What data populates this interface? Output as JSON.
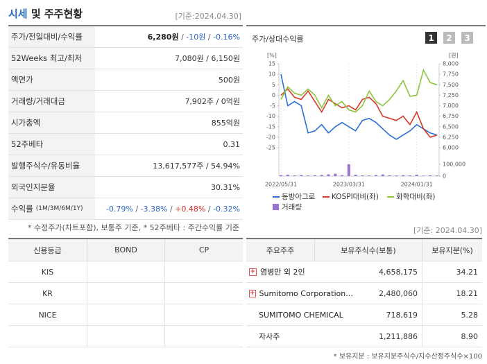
{
  "header": {
    "title_main": "시세",
    "title_rest": " 및 주주현황",
    "as_of": "[기준:2024.04.30]"
  },
  "stock_table": {
    "rows": [
      {
        "label": "주가/전일대비/수익률",
        "parts": [
          {
            "text": "6,280원",
            "color": "#222222",
            "bold": true
          },
          {
            "text": " / ",
            "color": "#555555"
          },
          {
            "text": "-10원",
            "color": "#2a64c8"
          },
          {
            "text": " / ",
            "color": "#555555"
          },
          {
            "text": "-0.16%",
            "color": "#2a64c8"
          }
        ]
      },
      {
        "label": "52Weeks 최고/최저",
        "parts": [
          {
            "text": "7,080원 / 6,150원",
            "color": "#333333"
          }
        ]
      },
      {
        "label": "액면가",
        "parts": [
          {
            "text": "500원",
            "color": "#333333"
          }
        ]
      },
      {
        "label": "거래량/거래대금",
        "parts": [
          {
            "text": "7,902주 / 0억원",
            "color": "#333333"
          }
        ]
      },
      {
        "label": "시가총액",
        "parts": [
          {
            "text": "855억원",
            "color": "#333333"
          }
        ]
      },
      {
        "label": "52주베타",
        "parts": [
          {
            "text": "0.31",
            "color": "#333333"
          }
        ]
      },
      {
        "label": "발행주식수/유동비율",
        "parts": [
          {
            "text": "13,617,577주 / 54.94%",
            "color": "#333333"
          }
        ]
      },
      {
        "label": "외국인지분율",
        "parts": [
          {
            "text": "30.31%",
            "color": "#333333"
          }
        ]
      },
      {
        "label": "수익률",
        "label_sub": "(1M/3M/6M/1Y)",
        "parts": [
          {
            "text": "-0.79%",
            "color": "#2a64c8"
          },
          {
            "text": " / ",
            "color": "#555555"
          },
          {
            "text": "-3.38%",
            "color": "#2a64c8"
          },
          {
            "text": " / ",
            "color": "#555555"
          },
          {
            "text": "+0.48%",
            "color": "#d42a2a"
          },
          {
            "text": " / ",
            "color": "#555555"
          },
          {
            "text": "-0.32%",
            "color": "#2a64c8"
          }
        ]
      }
    ]
  },
  "chart_panel": {
    "title": "주가/상대수익률",
    "buttons": [
      "1",
      "2",
      "3"
    ],
    "active_button": 0
  },
  "chart_data": {
    "type": "line",
    "categories": [
      "2022/05/31",
      null,
      null,
      null,
      null,
      null,
      null,
      null,
      null,
      null,
      "2023/03/31",
      null,
      null,
      null,
      null,
      null,
      null,
      null,
      null,
      null,
      "2024/01/31",
      null,
      null,
      null
    ],
    "y_unit": "[%]",
    "y2_unit": "[원]",
    "ylim": [
      -25,
      15
    ],
    "yticks": [
      15,
      10,
      5,
      0,
      -5,
      -10,
      -15,
      -20,
      -25
    ],
    "y2lim": [
      6000,
      8000
    ],
    "y2ticks": [
      {
        "value": 8000,
        "label": "8,000"
      },
      {
        "value": 7750,
        "label": "7,750"
      },
      {
        "value": 7500,
        "label": "7,500"
      },
      {
        "value": 7250,
        "label": "7,250"
      },
      {
        "value": 7000,
        "label": "7,000"
      },
      {
        "value": 6750,
        "label": "6,750"
      },
      {
        "value": 6500,
        "label": "6,500"
      },
      {
        "value": 6250,
        "label": "6,250"
      },
      {
        "value": 6000,
        "label": "6,000"
      }
    ],
    "series": [
      {
        "name": "동방아그로",
        "color": "#2b6fd6",
        "values": [
          10,
          -5,
          -3,
          -5,
          -18,
          -17,
          -14,
          -18,
          -15,
          -13,
          -15,
          -17,
          -12,
          -11,
          -13,
          -16,
          -19,
          -21,
          -19,
          -17,
          -14,
          -16,
          -18,
          -19
        ]
      },
      {
        "name": "KOSPI대비(좌)",
        "color": "#d43a2a",
        "values": [
          0,
          3,
          -1,
          -2,
          2,
          -3,
          -8,
          -2,
          -4,
          -6,
          -5,
          -7,
          -2,
          -1,
          -4,
          -10,
          -11,
          -12,
          -10,
          -14,
          -8,
          -16,
          -20,
          -19
        ]
      },
      {
        "name": "화학대비(좌)",
        "color": "#8cc43c",
        "values": [
          -2,
          4,
          1,
          0,
          3,
          0,
          -6,
          0,
          -5,
          -3,
          -7,
          -8,
          -5,
          2,
          -3,
          -5,
          -2,
          2,
          7,
          -0.5,
          0,
          12,
          6,
          5
        ]
      }
    ],
    "volume": {
      "name": "거래량",
      "color": "#9b72d4",
      "ylim": [
        0,
        100000
      ],
      "yticks": [
        0,
        {
          "value": 100000,
          "label": "100,000"
        }
      ],
      "values": [
        8000,
        12000,
        6000,
        9000,
        5000,
        7000,
        10000,
        15000,
        20000,
        8000,
        100000,
        12000,
        6000,
        5000,
        9000,
        14000,
        7000,
        5000,
        8000,
        6000,
        12000,
        4000,
        7000,
        5000
      ]
    }
  },
  "notes": {
    "left": "* 수정주가(차트포함), 보통주 기준, * 52주베타 : 주간수익률 기준",
    "right": "[기준: 2024.04.30]"
  },
  "credit_table": {
    "headers": [
      "신용등급",
      "BOND",
      "CP"
    ],
    "rows": [
      "KIS",
      "KR",
      "NICE"
    ]
  },
  "holders_table": {
    "headers": [
      "주요주주",
      "보유주식수(보통)",
      "보유지분(%)"
    ],
    "rows": [
      {
        "name": "염병만 외 2인",
        "shares": "4,658,175",
        "pct": "34.21",
        "expandable": true
      },
      {
        "name": "Sumitomo Corporation.…",
        "shares": "2,480,060",
        "pct": "18.21",
        "expandable": true
      },
      {
        "name": "SUMITOMO CHEMICAL",
        "shares": "718,619",
        "pct": "5.28",
        "expandable": false
      },
      {
        "name": "자사주",
        "shares": "1,211,886",
        "pct": "8.90",
        "expandable": false
      }
    ]
  },
  "footer": "* 보유지분 : 보유지분주식수/지수산정주식수×100"
}
